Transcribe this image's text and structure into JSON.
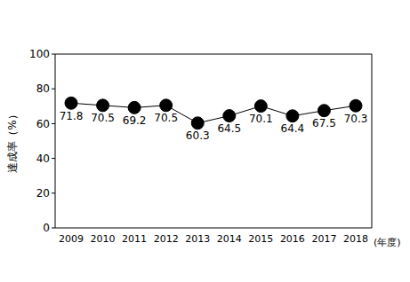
{
  "chart_data": {
    "type": "line",
    "x_label": "(年度)",
    "y_label": "達成率（%）",
    "categories": [
      "2009",
      "2010",
      "2011",
      "2012",
      "2013",
      "2014",
      "2015",
      "2016",
      "2017",
      "2018"
    ],
    "values": [
      71.8,
      70.5,
      69.2,
      70.5,
      60.3,
      64.5,
      70.1,
      64.4,
      67.5,
      70.3
    ],
    "color": "#000000",
    "marker": "circle",
    "ylim": [
      0,
      100
    ],
    "yticks": [
      0,
      20,
      40,
      60,
      80,
      100
    ],
    "grid": false,
    "data_labels": true
  }
}
